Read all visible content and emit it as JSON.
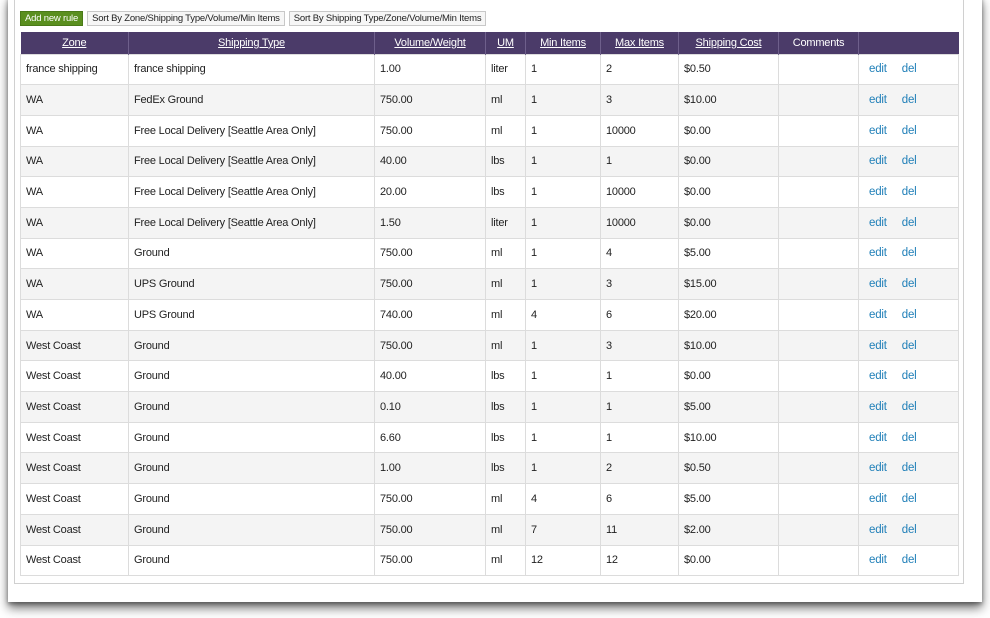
{
  "toolbar": {
    "add_label": "Add new rule",
    "sort1_label": "Sort By Zone/Shipping Type/Volume/Min Items",
    "sort2_label": "Sort By Shipping Type/Zone/Volume/Min Items"
  },
  "table": {
    "headers": {
      "zone": "Zone",
      "shipping_type": "Shipping Type",
      "volume": "Volume/Weight",
      "um": "UM",
      "min_items": "Min Items",
      "max_items": "Max Items",
      "cost": "Shipping Cost",
      "comments": "Comments"
    },
    "action_labels": {
      "edit": "edit",
      "del": "del"
    },
    "rows": [
      {
        "zone": "france shipping",
        "type": "france shipping",
        "volume": "1.00",
        "um": "liter",
        "min": "1",
        "max": "2",
        "cost": "$0.50",
        "comments": ""
      },
      {
        "zone": "WA",
        "type": "FedEx Ground",
        "volume": "750.00",
        "um": "ml",
        "min": "1",
        "max": "3",
        "cost": "$10.00",
        "comments": ""
      },
      {
        "zone": "WA",
        "type": "Free Local Delivery [Seattle Area Only]",
        "volume": "750.00",
        "um": "ml",
        "min": "1",
        "max": "10000",
        "cost": "$0.00",
        "comments": ""
      },
      {
        "zone": "WA",
        "type": "Free Local Delivery [Seattle Area Only]",
        "volume": "40.00",
        "um": "lbs",
        "min": "1",
        "max": "1",
        "cost": "$0.00",
        "comments": ""
      },
      {
        "zone": "WA",
        "type": "Free Local Delivery [Seattle Area Only]",
        "volume": "20.00",
        "um": "lbs",
        "min": "1",
        "max": "10000",
        "cost": "$0.00",
        "comments": ""
      },
      {
        "zone": "WA",
        "type": "Free Local Delivery [Seattle Area Only]",
        "volume": "1.50",
        "um": "liter",
        "min": "1",
        "max": "10000",
        "cost": "$0.00",
        "comments": ""
      },
      {
        "zone": "WA",
        "type": "Ground",
        "volume": "750.00",
        "um": "ml",
        "min": "1",
        "max": "4",
        "cost": "$5.00",
        "comments": ""
      },
      {
        "zone": "WA",
        "type": "UPS Ground",
        "volume": "750.00",
        "um": "ml",
        "min": "1",
        "max": "3",
        "cost": "$15.00",
        "comments": ""
      },
      {
        "zone": "WA",
        "type": "UPS Ground",
        "volume": "740.00",
        "um": "ml",
        "min": "4",
        "max": "6",
        "cost": "$20.00",
        "comments": ""
      },
      {
        "zone": "West Coast",
        "type": "Ground",
        "volume": "750.00",
        "um": "ml",
        "min": "1",
        "max": "3",
        "cost": "$10.00",
        "comments": ""
      },
      {
        "zone": "West Coast",
        "type": "Ground",
        "volume": "40.00",
        "um": "lbs",
        "min": "1",
        "max": "1",
        "cost": "$0.00",
        "comments": ""
      },
      {
        "zone": "West Coast",
        "type": "Ground",
        "volume": "0.10",
        "um": "lbs",
        "min": "1",
        "max": "1",
        "cost": "$5.00",
        "comments": ""
      },
      {
        "zone": "West Coast",
        "type": "Ground",
        "volume": "6.60",
        "um": "lbs",
        "min": "1",
        "max": "1",
        "cost": "$10.00",
        "comments": ""
      },
      {
        "zone": "West Coast",
        "type": "Ground",
        "volume": "1.00",
        "um": "lbs",
        "min": "1",
        "max": "2",
        "cost": "$0.50",
        "comments": ""
      },
      {
        "zone": "West Coast",
        "type": "Ground",
        "volume": "750.00",
        "um": "ml",
        "min": "4",
        "max": "6",
        "cost": "$5.00",
        "comments": ""
      },
      {
        "zone": "West Coast",
        "type": "Ground",
        "volume": "750.00",
        "um": "ml",
        "min": "7",
        "max": "11",
        "cost": "$2.00",
        "comments": ""
      },
      {
        "zone": "West Coast",
        "type": "Ground",
        "volume": "750.00",
        "um": "ml",
        "min": "12",
        "max": "12",
        "cost": "$0.00",
        "comments": ""
      }
    ]
  },
  "colors": {
    "header_bg": "#4b3b69",
    "add_button_bg": "#5a8f1f",
    "link": "#1f7fb8"
  }
}
